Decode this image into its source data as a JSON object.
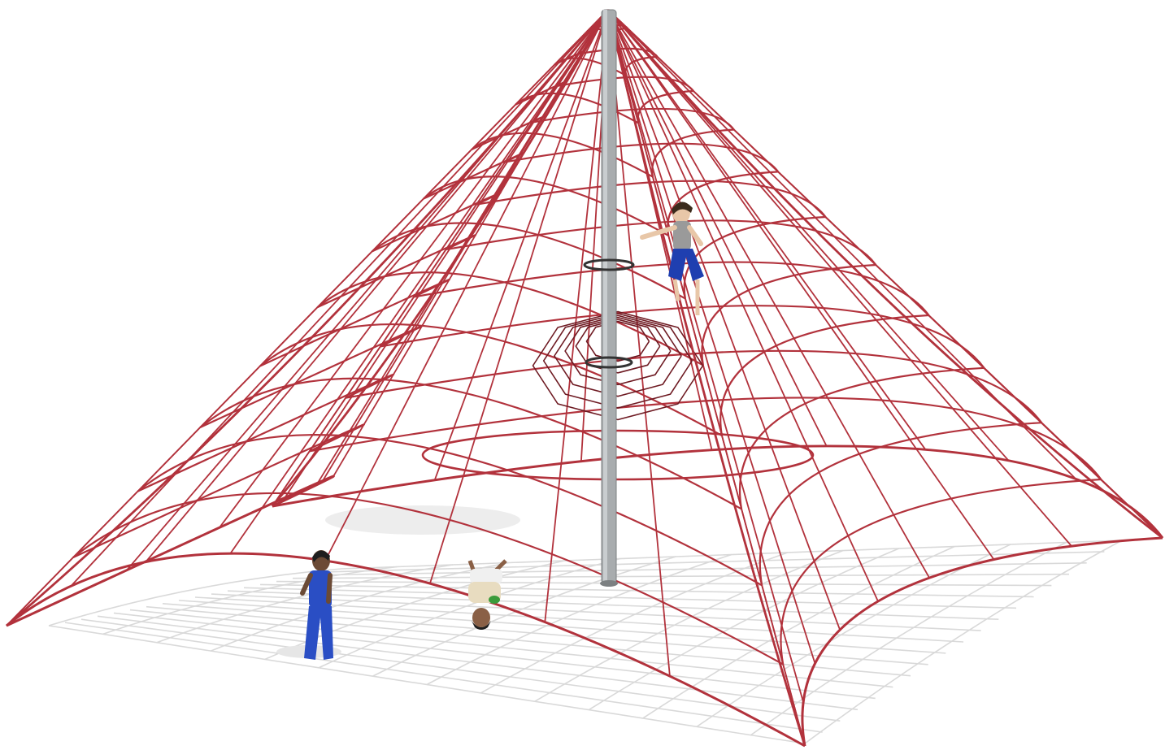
{
  "scene": {
    "subject": "rope-pyramid-climbing-net",
    "colors": {
      "background": "#ffffff",
      "rope": "#b2323c",
      "rope_shade": "#6e1a22",
      "shadow_net": "#d9d9d9",
      "pole": "#a8acae",
      "pole_shade": "#7c8082",
      "ground_shadow": "#e6e6e6"
    },
    "figures": [
      {
        "id": "child-climbing",
        "shirt": "#9a9a9a",
        "pants": "#1f3fb0",
        "skin": "#e8c7a8",
        "hair": "#3a2a1c"
      },
      {
        "id": "child-standing",
        "shirt": "#2a4ec4",
        "pants": "#2a4ec4",
        "skin": "#6b4a35",
        "hair": "#1e1e1e"
      },
      {
        "id": "child-hanging",
        "shirt": "#e8dcc0",
        "pants": "#3b9b3b",
        "skin": "#8a6046",
        "hair": "#1e1e1e"
      }
    ]
  }
}
